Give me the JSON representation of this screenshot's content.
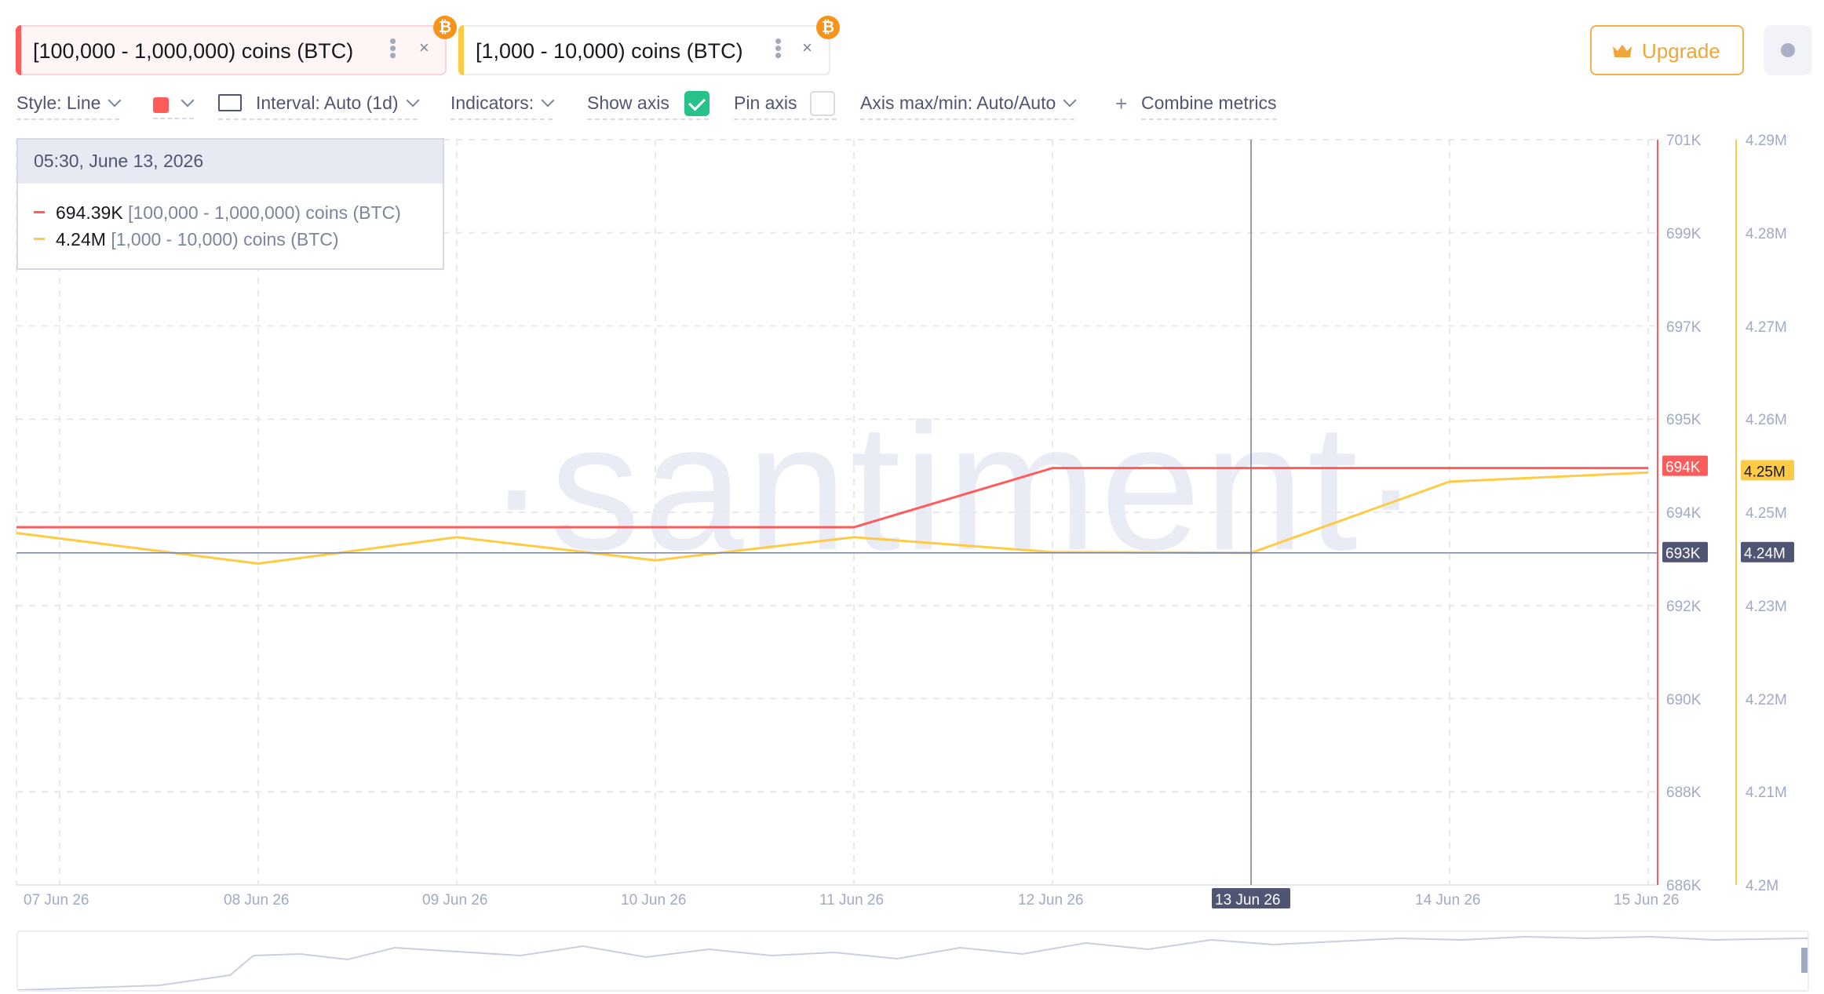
{
  "metrics": [
    {
      "label": "[100,000 - 1,000,000) coins (BTC)",
      "color": "#ff5b5b",
      "badge": "₿"
    },
    {
      "label": "[1,000 - 10,000) coins (BTC)",
      "color": "#ffcb47",
      "badge": "₿"
    }
  ],
  "header": {
    "upgrade_label": "Upgrade"
  },
  "toolbar": {
    "style_label": "Style: Line",
    "interval_label": "Interval: Auto (1d)",
    "indicators_label": "Indicators:",
    "show_axis_label": "Show axis",
    "show_axis_checked": true,
    "pin_axis_label": "Pin axis",
    "pin_axis_checked": false,
    "axis_maxmin_label": "Axis max/min: Auto/Auto",
    "combine_label": "Combine metrics"
  },
  "tooltip": {
    "date": "05:30, June 13, 2026",
    "rows": [
      {
        "value": "694.39K",
        "name": "[100,000  - 1,000,000) coins (BTC)",
        "color": "#ff5b5b"
      },
      {
        "value": "4.24M",
        "name": "[1,000 - 10,000) coins (BTC)",
        "color": "#ffcb47"
      }
    ]
  },
  "watermark": "·santiment·",
  "colors": {
    "red": "#ff5b5b",
    "yellow": "#ffcb47",
    "crosshair": "#7a8097",
    "accent": "#26c28a"
  },
  "chart_data": {
    "type": "line",
    "x": [
      "07 Jun 26",
      "08 Jun 26",
      "09 Jun 26",
      "10 Jun 26",
      "11 Jun 26",
      "12 Jun 26",
      "13 Jun 26",
      "14 Jun 26",
      "15 Jun 26"
    ],
    "x_ticks": [
      "07 Jun 26",
      "08 Jun 26",
      "09 Jun 26",
      "10 Jun 26",
      "11 Jun 26",
      "12 Jun 26",
      "13 Jun 26",
      "14 Jun 26",
      "15 Jun 26"
    ],
    "series": [
      {
        "name": "[100,000 - 1,000,000) coins (BTC)",
        "axis": "left",
        "color": "#ff5b5b",
        "values": [
          693.2,
          693.2,
          693.2,
          693.2,
          693.2,
          694.39,
          694.39,
          694.39,
          694.39
        ],
        "unit": "K",
        "last_label": "694K"
      },
      {
        "name": "[1,000 - 10,000) coins (BTC)",
        "axis": "right",
        "color": "#ffcb47",
        "values": [
          4.2425,
          4.2388,
          4.242,
          4.2392,
          4.242,
          4.2402,
          4.2401,
          4.2487,
          4.2498
        ],
        "unit": "M",
        "last_label": "4.25M"
      }
    ],
    "left_axis": {
      "ticks": [
        "701K",
        "699K",
        "697K",
        "695K",
        "694K",
        "692K",
        "690K",
        "688K",
        "686K"
      ],
      "ylim": [
        686,
        701
      ]
    },
    "right_axis": {
      "ticks": [
        "4.29M",
        "4.28M",
        "4.27M",
        "4.26M",
        "4.25M",
        "4.23M",
        "4.22M",
        "4.21M",
        "4.2M"
      ],
      "ylim": [
        4.2,
        4.29
      ]
    },
    "crosshair": {
      "x_label": "13 Jun 26",
      "left_label": "693K",
      "right_label": "4.24M"
    },
    "grid": true
  }
}
